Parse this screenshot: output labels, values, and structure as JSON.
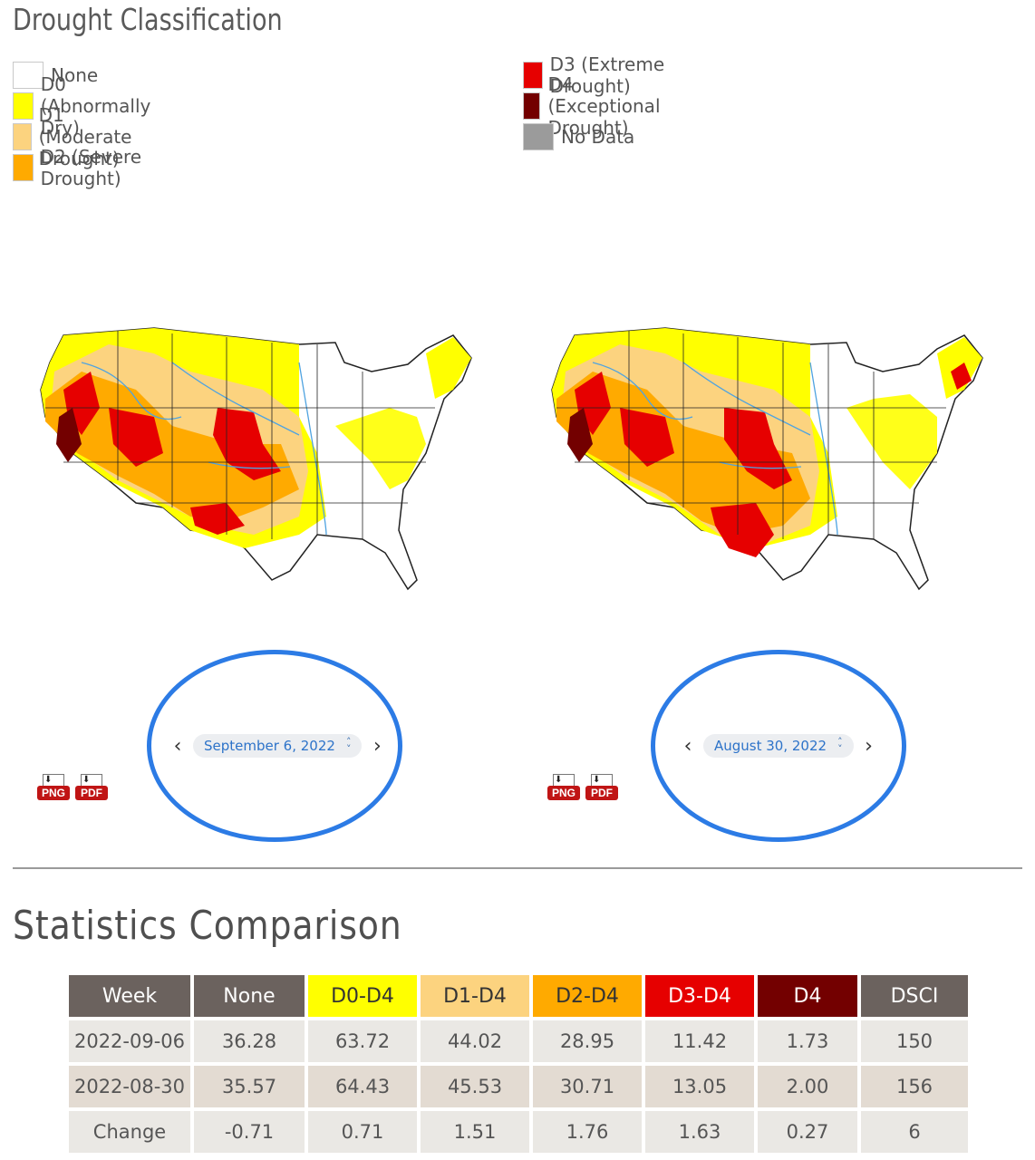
{
  "heading": "Drought Classification",
  "legend": {
    "left": [
      {
        "label": "None",
        "color": "#ffffff"
      },
      {
        "label": "D0 (Abnormally Dry)",
        "color": "#ffff00"
      },
      {
        "label": "D1 (Moderate Drought)",
        "color": "#fcd37f"
      },
      {
        "label": "D2 (Severe Drought)",
        "color": "#ffaa00"
      }
    ],
    "right": [
      {
        "label": "D3 (Extreme Drought)",
        "color": "#e60000"
      },
      {
        "label": "D4 (Exceptional Drought)",
        "color": "#730000"
      },
      {
        "label": "No Data",
        "color": "#9b9b9b"
      }
    ]
  },
  "maps": [
    {
      "date": "September 6, 2022",
      "png": "PNG",
      "pdf": "PDF"
    },
    {
      "date": "August 30, 2022",
      "png": "PNG",
      "pdf": "PDF"
    }
  ],
  "stats": {
    "title": "Statistics Comparison",
    "headers": [
      {
        "label": "Week",
        "bg": "#6b625e",
        "fg": "#ffffff"
      },
      {
        "label": "None",
        "bg": "#6b625e",
        "fg": "#ffffff"
      },
      {
        "label": "D0-D4",
        "bg": "#ffff00",
        "fg": "#333333"
      },
      {
        "label": "D1-D4",
        "bg": "#fcd37f",
        "fg": "#333333"
      },
      {
        "label": "D2-D4",
        "bg": "#ffaa00",
        "fg": "#333333"
      },
      {
        "label": "D3-D4",
        "bg": "#e60000",
        "fg": "#ffffff"
      },
      {
        "label": "D4",
        "bg": "#730000",
        "fg": "#ffffff"
      },
      {
        "label": "DSCI",
        "bg": "#6b625e",
        "fg": "#ffffff"
      }
    ],
    "rows": [
      [
        "2022-09-06",
        "36.28",
        "63.72",
        "44.02",
        "28.95",
        "11.42",
        "1.73",
        "150"
      ],
      [
        "2022-08-30",
        "35.57",
        "64.43",
        "45.53",
        "30.71",
        "13.05",
        "2.00",
        "156"
      ],
      [
        "Change",
        "-0.71",
        "0.71",
        "1.51",
        "1.76",
        "1.63",
        "0.27",
        "6"
      ]
    ]
  },
  "colors": {
    "d0": "#ffff00",
    "d1": "#fcd37f",
    "d2": "#ffaa00",
    "d3": "#e60000",
    "d4": "#730000",
    "highlight": "#2c7be5",
    "water": "#4fa3e0"
  }
}
